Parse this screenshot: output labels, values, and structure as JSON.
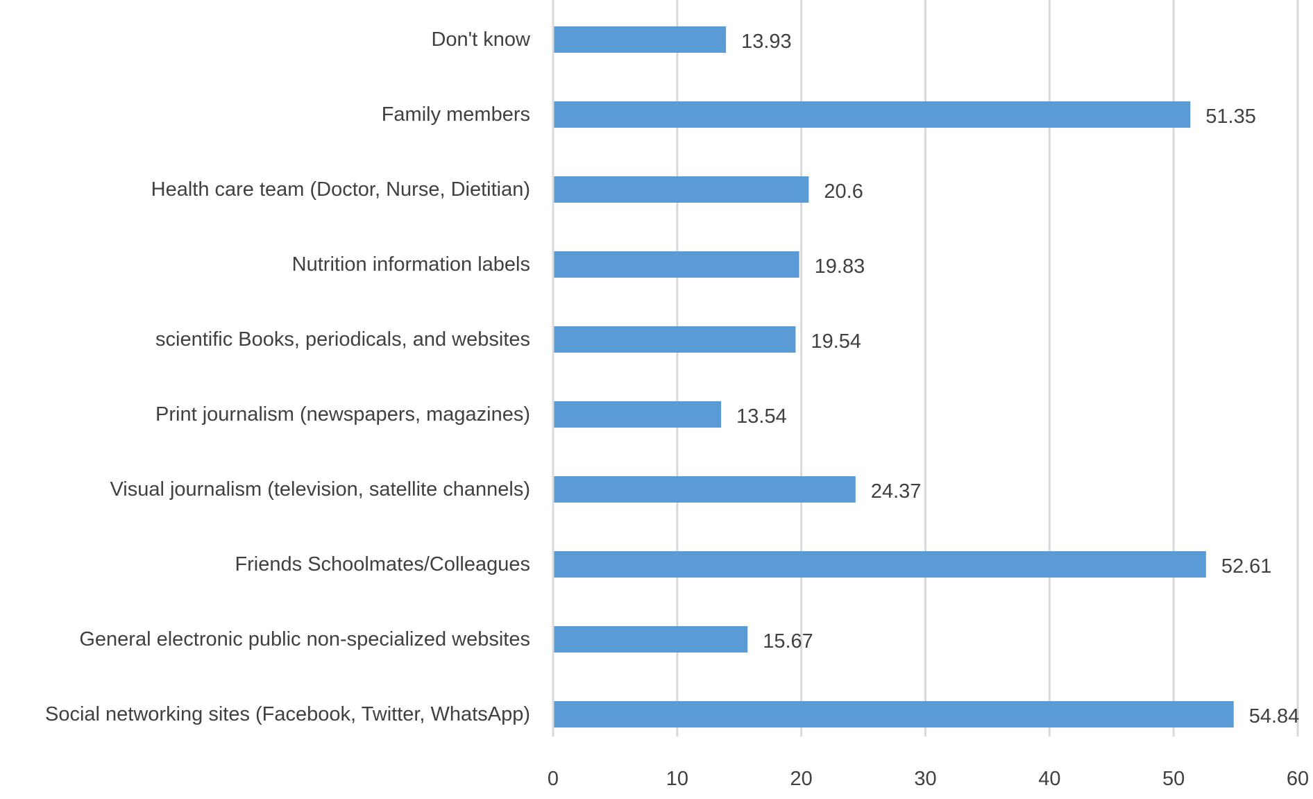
{
  "chart_data": {
    "type": "bar",
    "orientation": "horizontal",
    "title": "",
    "xlabel": "",
    "ylabel": "",
    "categories": [
      "Don't know",
      "Family members",
      "Health care team (Doctor, Nurse, Dietitian)",
      "Nutrition information labels",
      "scientific Books, periodicals, and websites",
      "Print journalism (newspapers, magazines)",
      "Visual journalism (television, satellite channels)",
      "Friends Schoolmates/Colleagues",
      "General electronic public non-specialized websites",
      "Social networking sites (Facebook, Twitter, WhatsApp)"
    ],
    "values": [
      13.93,
      51.35,
      20.6,
      19.83,
      19.54,
      13.54,
      24.37,
      52.61,
      15.67,
      54.84
    ],
    "value_labels": [
      "13.93",
      "51.35",
      "20.6",
      "19.83",
      "19.54",
      "13.54",
      "24.37",
      "52.61",
      "15.67",
      "54.84"
    ],
    "xlim": [
      0,
      60
    ],
    "x_ticks": [
      0,
      10,
      20,
      30,
      40,
      50,
      60
    ],
    "x_tick_labels": [
      "0",
      "10",
      "20",
      "30",
      "40",
      "50",
      "60"
    ],
    "grid": "vertical",
    "legend": "none",
    "bar_color": "#5b9bd5",
    "grid_color": "#d9d9d9"
  }
}
